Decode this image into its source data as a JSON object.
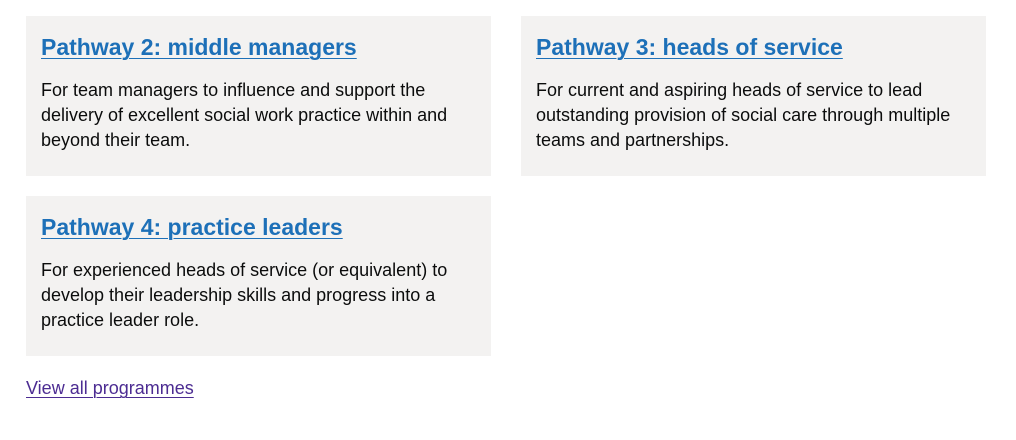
{
  "colors": {
    "card_background": "#f3f2f1",
    "link": "#1d70b8",
    "visited_link": "#4c2c92",
    "text": "#0b0c0c"
  },
  "cards": [
    {
      "title": "Pathway 2: middle managers",
      "description": "For team managers to influence and support the delivery of excellent social work practice within and beyond their team."
    },
    {
      "title": "Pathway 3: heads of service",
      "description": "For current and aspiring heads of service to lead outstanding provision of social care through multiple teams and partnerships."
    },
    {
      "title": "Pathway 4: practice leaders",
      "description": "For experienced heads of service (or equivalent) to develop their leadership skills and progress into a practice leader role."
    }
  ],
  "footer": {
    "view_all_label": "View all programmes"
  }
}
